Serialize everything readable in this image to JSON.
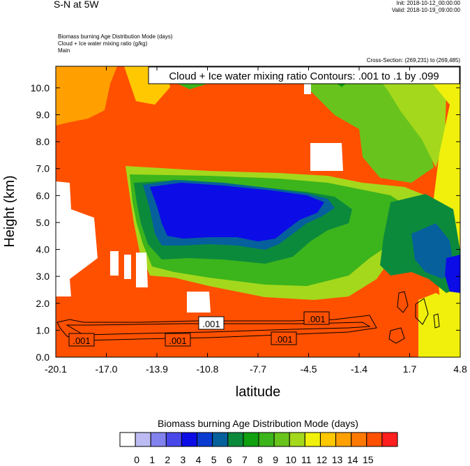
{
  "header": {
    "title": "S-N at 5W",
    "init": "Init: 2018-10-12_00:00:00",
    "valid": "Valid: 2018-10-19_09:00:00",
    "field1": "Biomass burning Age Distribution Mode   (days)",
    "field2": "Cloud + Ice water mixing ratio   (g/kg)",
    "field3": "Main",
    "cross_section": "Cross-Section: (269,231) to (269,485)"
  },
  "chart_data": {
    "type": "heatmap",
    "title": "",
    "info_box": "Cloud + Ice water mixing ratio Contours: .001 to .1 by .099",
    "xlabel": "latitude",
    "ylabel": "Height (km)",
    "xlim": [
      -20.1,
      4.8
    ],
    "ylim": [
      0.0,
      10.8
    ],
    "x_ticks": [
      "-20.1",
      "-17.0",
      "-13.9",
      "-10.8",
      "-7.7",
      "-4.5",
      "-1.4",
      "1.7",
      "4.8"
    ],
    "y_ticks": [
      "0.0",
      "1.0",
      "2.0",
      "3.0",
      "4.0",
      "5.0",
      "6.0",
      "7.0",
      "8.0",
      "9.0",
      "10.0"
    ],
    "colorbar": {
      "title": "Biomass burning Age Distribution Mode  (days)",
      "labels": [
        "0",
        "1",
        "2",
        "3",
        "4",
        "5",
        "6",
        "7",
        "8",
        "9",
        "10",
        "11",
        "12",
        "13",
        "14",
        "15"
      ],
      "colors": [
        "#ffffff",
        "#bcbcf3",
        "#8282ee",
        "#4848ea",
        "#0c0ce6",
        "#0a3ad0",
        "#06609c",
        "#0c8a3c",
        "#10a010",
        "#3cb41c",
        "#68c41c",
        "#a4d81c",
        "#f0f00c",
        "#ffc800",
        "#ffa000",
        "#ff7800",
        "#ff5000",
        "#ff1e1e"
      ]
    },
    "contour_labels": [
      ".001",
      ".001",
      ".001",
      ".001",
      ".001"
    ],
    "regions_days": {
      "background_upper_left": 13,
      "dominant_field": 14,
      "upper_anvil_band": 10,
      "mid_level_core": 4,
      "core_edge": 6,
      "lower_right_plume": 11,
      "surface_right": 12
    }
  }
}
